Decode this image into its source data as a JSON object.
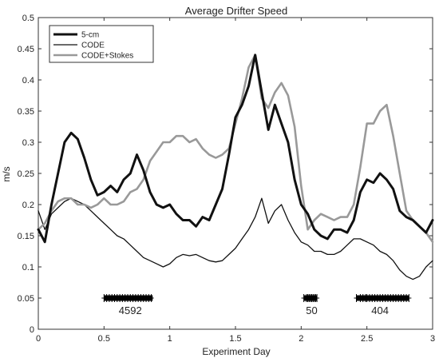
{
  "chart_data": {
    "type": "line",
    "title": "Average Drifter Speed",
    "xlabel": "Experiment Day",
    "ylabel": "m/s",
    "xlim": [
      0,
      3
    ],
    "ylim": [
      0,
      0.5
    ],
    "xticks": [
      0,
      0.5,
      1,
      1.5,
      2,
      2.5,
      3
    ],
    "xtick_labels": [
      "0",
      "0.5",
      "1",
      "1.5",
      "2",
      "2.5",
      "3"
    ],
    "yticks": [
      0,
      0.05,
      0.1,
      0.15,
      0.2,
      0.25,
      0.3,
      0.35,
      0.4,
      0.45,
      0.5
    ],
    "ytick_labels": [
      "0",
      "0.05",
      "0.1",
      "0.15",
      "0.2",
      "0.25",
      "0.3",
      "0.35",
      "0.4",
      "0.45",
      "0.5"
    ],
    "grid": false,
    "legend": "top-left",
    "series": [
      {
        "name": "5-cm",
        "color": "#111111",
        "x": [
          0,
          0.05,
          0.1,
          0.15,
          0.2,
          0.25,
          0.3,
          0.35,
          0.4,
          0.45,
          0.5,
          0.55,
          0.6,
          0.65,
          0.7,
          0.75,
          0.8,
          0.85,
          0.9,
          0.95,
          1.0,
          1.05,
          1.1,
          1.15,
          1.2,
          1.25,
          1.3,
          1.35,
          1.4,
          1.45,
          1.5,
          1.55,
          1.6,
          1.65,
          1.7,
          1.75,
          1.8,
          1.85,
          1.9,
          1.95,
          2.0,
          2.05,
          2.1,
          2.15,
          2.2,
          2.25,
          2.3,
          2.35,
          2.4,
          2.45,
          2.5,
          2.55,
          2.6,
          2.65,
          2.7,
          2.75,
          2.8,
          2.85,
          2.9,
          2.95,
          3.0
        ],
        "y": [
          0.16,
          0.14,
          0.2,
          0.25,
          0.3,
          0.315,
          0.305,
          0.275,
          0.24,
          0.215,
          0.22,
          0.23,
          0.22,
          0.24,
          0.25,
          0.28,
          0.255,
          0.22,
          0.2,
          0.195,
          0.2,
          0.185,
          0.175,
          0.175,
          0.165,
          0.18,
          0.175,
          0.2,
          0.225,
          0.28,
          0.34,
          0.36,
          0.39,
          0.44,
          0.38,
          0.32,
          0.36,
          0.33,
          0.3,
          0.24,
          0.2,
          0.185,
          0.16,
          0.15,
          0.145,
          0.16,
          0.16,
          0.155,
          0.175,
          0.22,
          0.24,
          0.235,
          0.25,
          0.24,
          0.225,
          0.19,
          0.18,
          0.175,
          0.165,
          0.155,
          0.175
        ]
      },
      {
        "name": "CODE",
        "color": "#111111",
        "x": [
          0,
          0.05,
          0.1,
          0.15,
          0.2,
          0.25,
          0.3,
          0.35,
          0.4,
          0.45,
          0.5,
          0.55,
          0.6,
          0.65,
          0.7,
          0.75,
          0.8,
          0.85,
          0.9,
          0.95,
          1.0,
          1.05,
          1.1,
          1.15,
          1.2,
          1.25,
          1.3,
          1.35,
          1.4,
          1.45,
          1.5,
          1.55,
          1.6,
          1.65,
          1.7,
          1.75,
          1.8,
          1.85,
          1.9,
          1.95,
          2.0,
          2.05,
          2.1,
          2.15,
          2.2,
          2.25,
          2.3,
          2.35,
          2.4,
          2.45,
          2.5,
          2.55,
          2.6,
          2.65,
          2.7,
          2.75,
          2.8,
          2.85,
          2.9,
          2.95,
          3.0
        ],
        "y": [
          0.19,
          0.16,
          0.185,
          0.195,
          0.205,
          0.21,
          0.205,
          0.2,
          0.19,
          0.18,
          0.17,
          0.16,
          0.15,
          0.145,
          0.135,
          0.125,
          0.115,
          0.11,
          0.105,
          0.1,
          0.105,
          0.115,
          0.12,
          0.118,
          0.12,
          0.115,
          0.11,
          0.108,
          0.11,
          0.12,
          0.13,
          0.145,
          0.16,
          0.18,
          0.21,
          0.17,
          0.19,
          0.2,
          0.175,
          0.155,
          0.14,
          0.135,
          0.125,
          0.125,
          0.12,
          0.12,
          0.125,
          0.135,
          0.145,
          0.145,
          0.14,
          0.135,
          0.125,
          0.12,
          0.11,
          0.095,
          0.085,
          0.08,
          0.085,
          0.1,
          0.11
        ]
      },
      {
        "name": "CODE+Stokes",
        "color": "#999999",
        "x": [
          0,
          0.05,
          0.1,
          0.15,
          0.2,
          0.25,
          0.3,
          0.35,
          0.4,
          0.45,
          0.5,
          0.55,
          0.6,
          0.65,
          0.7,
          0.75,
          0.8,
          0.85,
          0.9,
          0.95,
          1.0,
          1.05,
          1.1,
          1.15,
          1.2,
          1.25,
          1.3,
          1.35,
          1.4,
          1.45,
          1.5,
          1.55,
          1.6,
          1.65,
          1.7,
          1.75,
          1.8,
          1.85,
          1.9,
          1.95,
          2.0,
          2.05,
          2.1,
          2.15,
          2.2,
          2.25,
          2.3,
          2.35,
          2.4,
          2.45,
          2.5,
          2.55,
          2.6,
          2.65,
          2.7,
          2.75,
          2.8,
          2.85,
          2.9,
          2.95,
          3.0
        ],
        "y": [
          0.16,
          0.17,
          0.19,
          0.205,
          0.21,
          0.21,
          0.2,
          0.2,
          0.195,
          0.2,
          0.21,
          0.2,
          0.2,
          0.205,
          0.22,
          0.225,
          0.24,
          0.27,
          0.285,
          0.3,
          0.3,
          0.31,
          0.31,
          0.3,
          0.305,
          0.29,
          0.28,
          0.275,
          0.28,
          0.29,
          0.33,
          0.37,
          0.42,
          0.44,
          0.37,
          0.355,
          0.38,
          0.395,
          0.375,
          0.325,
          0.23,
          0.16,
          0.175,
          0.185,
          0.18,
          0.175,
          0.18,
          0.18,
          0.2,
          0.26,
          0.33,
          0.33,
          0.35,
          0.36,
          0.31,
          0.25,
          0.19,
          0.175,
          0.165,
          0.155,
          0.14
        ]
      }
    ],
    "count_markers": [
      {
        "label": "4592",
        "x_start": 0.5,
        "x_end": 0.87,
        "label_x": 0.7,
        "y": 0.05,
        "xs": [
          0.5,
          0.52,
          0.54,
          0.56,
          0.58,
          0.6,
          0.62,
          0.64,
          0.66,
          0.68,
          0.7,
          0.72,
          0.74,
          0.76,
          0.78,
          0.8,
          0.82,
          0.84,
          0.86
        ]
      },
      {
        "label": "50",
        "x_start": 2.02,
        "x_end": 2.12,
        "label_x": 2.08,
        "y": 0.05,
        "xs": [
          2.02,
          2.04,
          2.05,
          2.06,
          2.07,
          2.08,
          2.09,
          2.1,
          2.11,
          2.12
        ]
      },
      {
        "label": "404",
        "x_start": 2.42,
        "x_end": 2.82,
        "label_x": 2.6,
        "y": 0.05,
        "xs": [
          2.42,
          2.45,
          2.47,
          2.49,
          2.5,
          2.52,
          2.54,
          2.56,
          2.58,
          2.6,
          2.62,
          2.64,
          2.66,
          2.68,
          2.7,
          2.72,
          2.74,
          2.76,
          2.78,
          2.8,
          2.82
        ]
      }
    ]
  }
}
